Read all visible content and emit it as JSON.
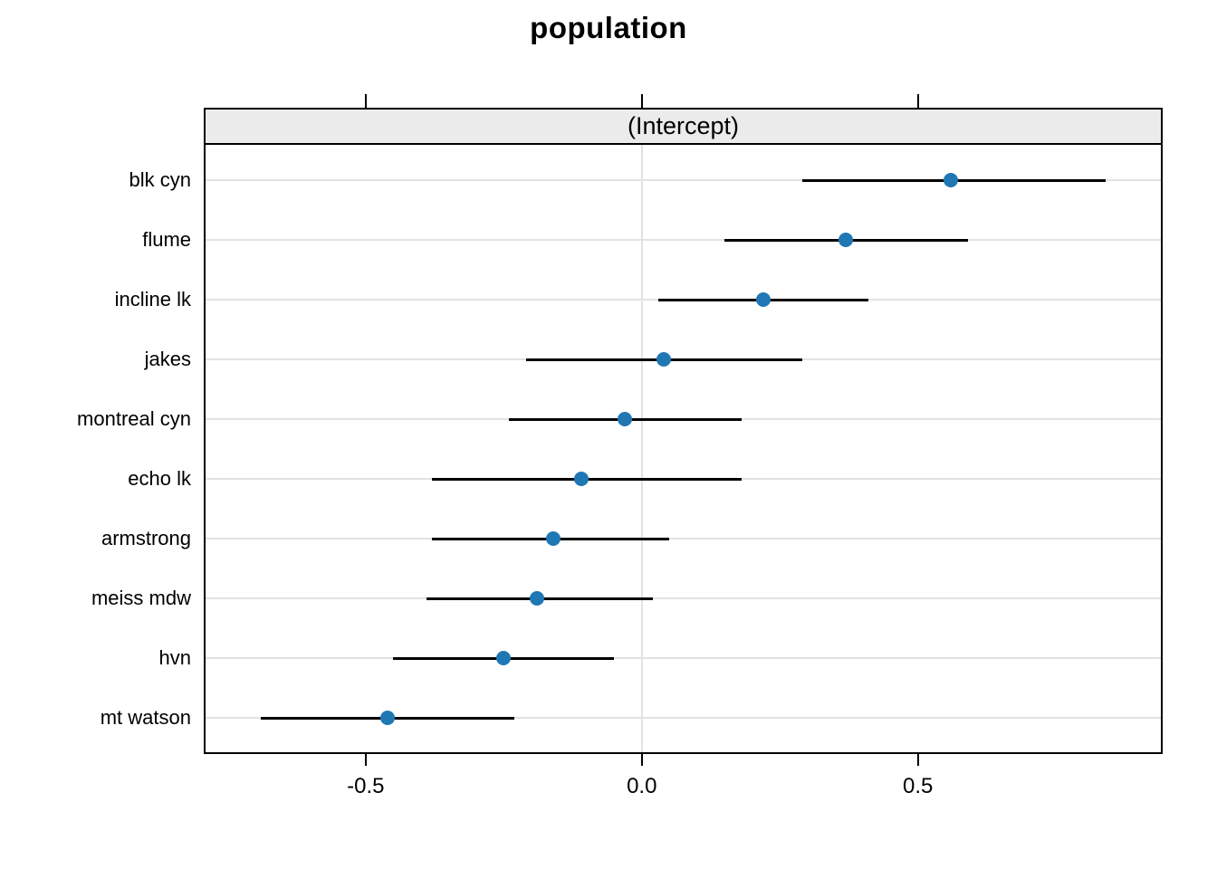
{
  "chart_data": {
    "type": "scatter",
    "subtype": "dotplot-with-intervals",
    "title": "population",
    "panel_label": "(Intercept)",
    "rows_top_to_bottom": [
      {
        "label": "blk cyn",
        "estimate": 0.56,
        "lower": 0.29,
        "upper": 0.84
      },
      {
        "label": "flume",
        "estimate": 0.37,
        "lower": 0.15,
        "upper": 0.59
      },
      {
        "label": "incline lk",
        "estimate": 0.22,
        "lower": 0.03,
        "upper": 0.41
      },
      {
        "label": "jakes",
        "estimate": 0.04,
        "lower": -0.21,
        "upper": 0.29
      },
      {
        "label": "montreal cyn",
        "estimate": -0.03,
        "lower": -0.24,
        "upper": 0.18
      },
      {
        "label": "echo lk",
        "estimate": -0.11,
        "lower": -0.38,
        "upper": 0.18
      },
      {
        "label": "armstrong",
        "estimate": -0.16,
        "lower": -0.38,
        "upper": 0.05
      },
      {
        "label": "meiss mdw",
        "estimate": -0.19,
        "lower": -0.39,
        "upper": 0.02
      },
      {
        "label": "hvn",
        "estimate": -0.25,
        "lower": -0.45,
        "upper": -0.05
      },
      {
        "label": "mt watson",
        "estimate": -0.46,
        "lower": -0.69,
        "upper": -0.23
      }
    ],
    "xlim": [
      -0.79,
      0.94
    ],
    "xticks": [
      -0.5,
      0.0,
      0.5
    ],
    "xtick_labels": [
      "-0.5",
      "0.0",
      "0.5"
    ],
    "axes": {
      "top_ticks": true,
      "bottom_ticks": true,
      "bottom_labels": true
    },
    "grid": {
      "horizontal_row_lines": true,
      "zero_reference_line": true
    },
    "legend": "none",
    "colors": {
      "dot": "#1f77b4",
      "interval_line": "#000000",
      "gridline": "#e2e2e2",
      "strip_fill": "#ebebeb",
      "border": "#000000",
      "background": "#ffffff"
    }
  }
}
